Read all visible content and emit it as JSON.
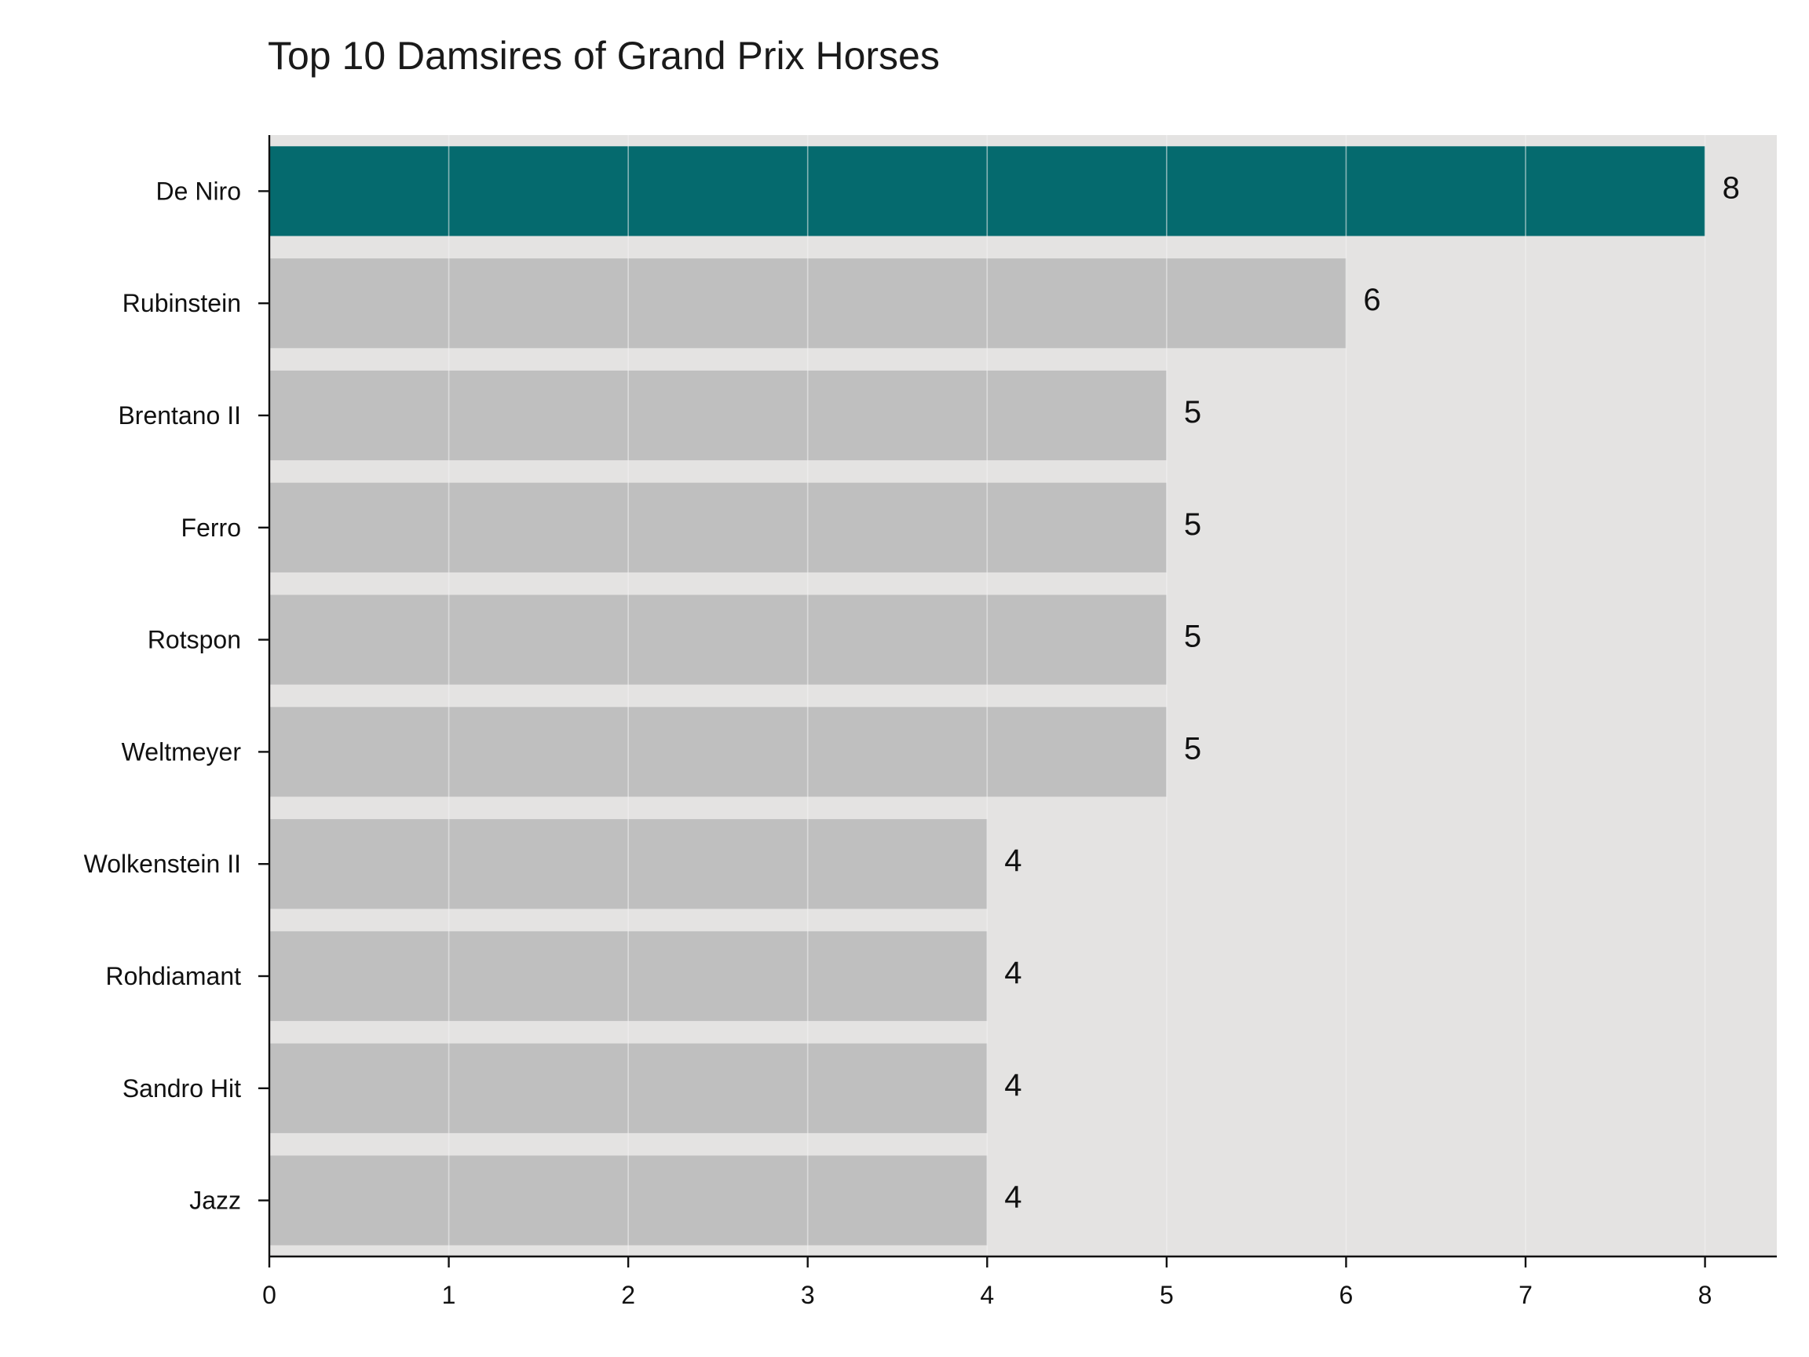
{
  "chart_data": {
    "type": "bar",
    "orientation": "horizontal",
    "title": "Top 10 Damsires of Grand Prix Horses",
    "xlabel": "",
    "ylabel": "",
    "categories": [
      "De Niro",
      "Rubinstein",
      "Brentano II",
      "Ferro",
      "Rotspon",
      "Weltmeyer",
      "Wolkenstein II",
      "Rohdiamant",
      "Sandro Hit",
      "Jazz"
    ],
    "values": [
      8,
      6,
      5,
      5,
      5,
      5,
      4,
      4,
      4,
      4
    ],
    "value_labels": [
      "8",
      "6",
      "5",
      "5",
      "5",
      "5",
      "4",
      "4",
      "4",
      "4"
    ],
    "xlim": [
      0,
      8.4
    ],
    "x_ticks": [
      0,
      1,
      2,
      3,
      4,
      5,
      6,
      7,
      8
    ],
    "x_tick_labels": [
      "0",
      "1",
      "2",
      "3",
      "4",
      "5",
      "6",
      "7",
      "8"
    ],
    "grid": "vertical",
    "highlight_index": 0,
    "colors": {
      "highlight": "#056a6e",
      "bar": "#bfbfbf",
      "plot_background": "#e4e3e2",
      "gridline": "#f3f3f3",
      "axis": "#111111",
      "text": "#111111"
    }
  }
}
